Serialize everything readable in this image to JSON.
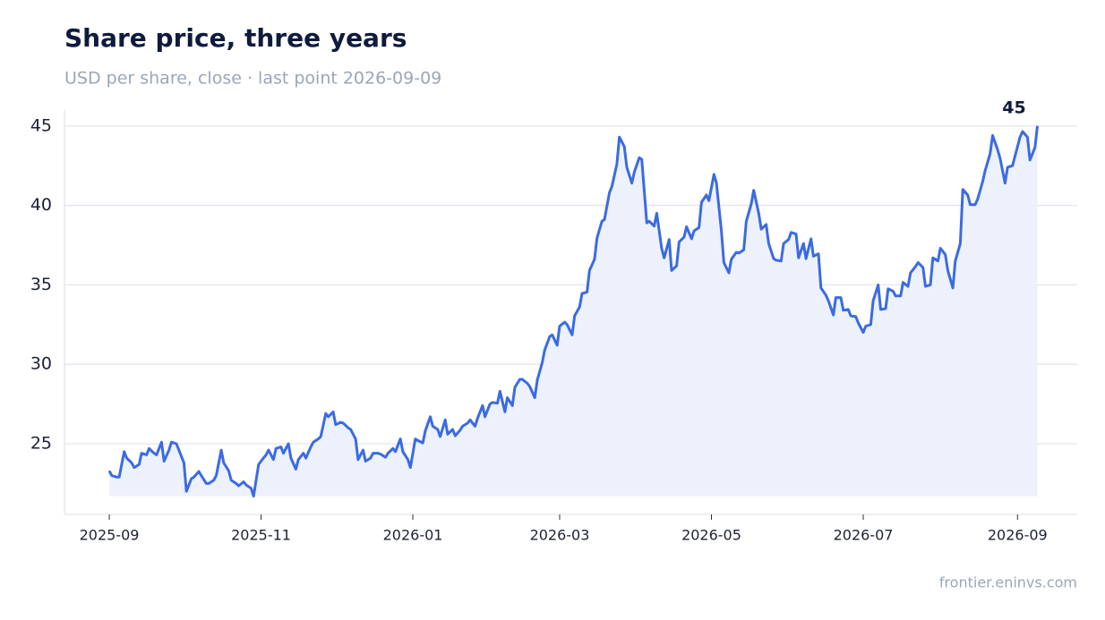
{
  "chart_data": {
    "type": "line",
    "title": "Share price, three years",
    "subtitle": "USD per share, close · last point 2026-09-09",
    "source": "frontier.eninvs.com",
    "x": [
      "2025-09-01",
      "2025-09-02",
      "2025-09-04",
      "2025-09-05",
      "2025-09-07",
      "2025-09-08",
      "2025-09-10",
      "2025-09-11",
      "2025-09-13",
      "2025-09-14",
      "2025-09-16",
      "2025-09-17",
      "2025-09-19",
      "2025-09-20",
      "2025-09-22",
      "2025-09-23",
      "2025-09-25",
      "2025-09-26",
      "2025-09-28",
      "2025-09-29",
      "2025-10-01",
      "2025-10-02",
      "2025-10-04",
      "2025-10-05",
      "2025-10-07",
      "2025-10-08",
      "2025-10-10",
      "2025-10-11",
      "2025-10-13",
      "2025-10-14",
      "2025-10-16",
      "2025-10-17",
      "2025-10-19",
      "2025-10-20",
      "2025-10-22",
      "2025-10-23",
      "2025-10-25",
      "2025-10-26",
      "2025-10-28",
      "2025-10-29",
      "2025-10-31",
      "2025-11-01",
      "2025-11-03",
      "2025-11-04",
      "2025-11-06",
      "2025-11-07",
      "2025-11-09",
      "2025-11-10",
      "2025-11-12",
      "2025-11-13",
      "2025-11-15",
      "2025-11-16",
      "2025-11-18",
      "2025-11-19",
      "2025-11-21",
      "2025-11-22",
      "2025-11-24",
      "2025-11-25",
      "2025-11-27",
      "2025-11-28",
      "2025-11-30",
      "2025-12-01",
      "2025-12-03",
      "2025-12-04",
      "2025-12-06",
      "2025-12-07",
      "2025-12-09",
      "2025-12-10",
      "2025-12-12",
      "2025-12-13",
      "2025-12-15",
      "2025-12-16",
      "2025-12-18",
      "2025-12-19",
      "2025-12-21",
      "2025-12-22",
      "2025-12-24",
      "2025-12-25",
      "2025-12-27",
      "2025-12-28",
      "2025-12-30",
      "2025-12-31",
      "2026-01-02",
      "2026-01-03",
      "2026-01-05",
      "2026-01-06",
      "2026-01-08",
      "2026-01-09",
      "2026-01-11",
      "2026-01-12",
      "2026-01-14",
      "2026-01-15",
      "2026-01-17",
      "2026-01-18",
      "2026-01-20",
      "2026-01-21",
      "2026-01-23",
      "2026-01-24",
      "2026-01-26",
      "2026-01-27",
      "2026-01-29",
      "2026-01-30",
      "2026-02-01",
      "2026-02-02",
      "2026-02-04",
      "2026-02-05",
      "2026-02-07",
      "2026-02-08",
      "2026-02-10",
      "2026-02-11",
      "2026-02-13",
      "2026-02-14",
      "2026-02-16",
      "2026-02-17",
      "2026-02-19",
      "2026-02-20",
      "2026-02-22",
      "2026-02-23",
      "2026-02-25",
      "2026-02-26",
      "2026-02-28",
      "2026-03-01",
      "2026-03-03",
      "2026-03-04",
      "2026-03-06",
      "2026-03-07",
      "2026-03-09",
      "2026-03-10",
      "2026-03-12",
      "2026-03-13",
      "2026-03-15",
      "2026-03-16",
      "2026-03-18",
      "2026-03-19",
      "2026-03-21",
      "2026-03-22",
      "2026-03-24",
      "2026-03-25",
      "2026-03-27",
      "2026-03-28",
      "2026-03-30",
      "2026-03-31",
      "2026-04-02",
      "2026-04-03",
      "2026-04-05",
      "2026-04-06",
      "2026-04-08",
      "2026-04-09",
      "2026-04-11",
      "2026-04-12",
      "2026-04-14",
      "2026-04-15",
      "2026-04-17",
      "2026-04-18",
      "2026-04-20",
      "2026-04-21",
      "2026-04-23",
      "2026-04-24",
      "2026-04-26",
      "2026-04-27",
      "2026-04-29",
      "2026-04-30",
      "2026-05-02",
      "2026-05-03",
      "2026-05-05",
      "2026-05-06",
      "2026-05-08",
      "2026-05-09",
      "2026-05-11",
      "2026-05-12",
      "2026-05-14",
      "2026-05-15",
      "2026-05-17",
      "2026-05-18",
      "2026-05-20",
      "2026-05-21",
      "2026-05-23",
      "2026-05-24",
      "2026-05-26",
      "2026-05-27",
      "2026-05-29",
      "2026-05-30",
      "2026-06-01",
      "2026-06-02",
      "2026-06-04",
      "2026-06-05",
      "2026-06-07",
      "2026-06-08",
      "2026-06-10",
      "2026-06-11",
      "2026-06-13",
      "2026-06-14",
      "2026-06-16",
      "2026-06-17",
      "2026-06-19",
      "2026-06-20",
      "2026-06-22",
      "2026-06-23",
      "2026-06-25",
      "2026-06-26",
      "2026-06-28",
      "2026-06-29",
      "2026-07-01",
      "2026-07-02",
      "2026-07-04",
      "2026-07-05",
      "2026-07-07",
      "2026-07-08",
      "2026-07-10",
      "2026-07-11",
      "2026-07-13",
      "2026-07-14",
      "2026-07-16",
      "2026-07-17",
      "2026-07-19",
      "2026-07-20",
      "2026-07-22",
      "2026-07-23",
      "2026-07-25",
      "2026-07-26",
      "2026-07-28",
      "2026-07-29",
      "2026-07-31",
      "2026-08-01",
      "2026-08-03",
      "2026-08-04",
      "2026-08-06",
      "2026-08-07",
      "2026-08-09",
      "2026-08-10",
      "2026-08-12",
      "2026-08-13",
      "2026-08-15",
      "2026-08-16",
      "2026-08-18",
      "2026-08-19",
      "2026-08-21",
      "2026-08-22",
      "2026-08-24",
      "2026-08-25",
      "2026-08-27",
      "2026-08-28",
      "2026-08-30",
      "2026-08-31",
      "2026-09-02",
      "2026-09-03",
      "2026-09-05",
      "2026-09-06",
      "2026-09-08",
      "2026-09-09"
    ],
    "series": [
      {
        "name": "Close",
        "color": "#3b6be3",
        "fill": "#edf1fc",
        "values": [
          23.3,
          23.0,
          22.9,
          22.9,
          24.5,
          24.1,
          23.8,
          23.5,
          23.7,
          24.4,
          24.3,
          24.7,
          24.4,
          24.3,
          25.1,
          23.9,
          24.6,
          25.1,
          25.0,
          24.6,
          23.8,
          22.0,
          22.8,
          22.9,
          23.25,
          23.0,
          22.5,
          22.5,
          22.7,
          23.0,
          24.6,
          23.8,
          23.3,
          22.7,
          22.5,
          22.35,
          22.6,
          22.4,
          22.2,
          21.7,
          23.7,
          23.9,
          24.3,
          24.6,
          24.0,
          24.7,
          24.8,
          24.4,
          25.0,
          24.1,
          23.4,
          24.0,
          24.4,
          24.1,
          24.8,
          25.1,
          25.3,
          25.45,
          26.9,
          26.7,
          27.0,
          26.2,
          26.35,
          26.3,
          26.0,
          25.9,
          25.3,
          24.0,
          24.6,
          23.9,
          24.1,
          24.4,
          24.4,
          24.35,
          24.15,
          24.4,
          24.7,
          24.5,
          25.3,
          24.5,
          24.0,
          23.5,
          25.3,
          25.2,
          25.05,
          25.8,
          26.7,
          26.1,
          25.9,
          25.45,
          26.5,
          25.6,
          25.9,
          25.5,
          25.85,
          26.1,
          26.3,
          26.5,
          26.1,
          26.6,
          27.4,
          26.7,
          27.5,
          27.6,
          27.55,
          28.3,
          27.0,
          27.9,
          27.4,
          28.55,
          29.05,
          29.05,
          28.8,
          28.6,
          27.9,
          29.0,
          30.1,
          30.9,
          31.75,
          31.85,
          31.2,
          32.4,
          32.65,
          32.5,
          31.85,
          33.05,
          33.6,
          34.45,
          34.55,
          35.9,
          36.6,
          37.95,
          39.0,
          39.1,
          40.8,
          41.2,
          42.6,
          44.3,
          43.7,
          42.4,
          41.4,
          42.1,
          43.0,
          42.9,
          38.9,
          39.0,
          38.7,
          39.5,
          37.3,
          36.7,
          37.85,
          35.9,
          36.2,
          37.7,
          38.0,
          38.65,
          37.9,
          38.4,
          38.6,
          40.2,
          40.65,
          40.3,
          41.95,
          41.4,
          38.4,
          36.4,
          35.75,
          36.6,
          37.05,
          37.0,
          37.2,
          39.0,
          40.1,
          40.95,
          39.5,
          38.5,
          38.8,
          37.6,
          36.65,
          36.55,
          36.5,
          37.6,
          37.85,
          38.3,
          38.2,
          36.7,
          37.6,
          36.65,
          37.9,
          36.8,
          36.95,
          34.8,
          34.35,
          34.0,
          33.1,
          34.2,
          34.2,
          33.4,
          33.45,
          33.05,
          33.0,
          32.6,
          32.0,
          32.4,
          32.5,
          34.0,
          35.0,
          33.45,
          33.5,
          34.75,
          34.6,
          34.3,
          34.3,
          35.15,
          34.9,
          35.75,
          36.15,
          36.4,
          36.1,
          34.9,
          35.0,
          36.7,
          36.5,
          37.3,
          36.9,
          35.9,
          34.8,
          36.5,
          37.6,
          41.0,
          40.65,
          40.05,
          40.05,
          40.4,
          41.5,
          42.2,
          43.25,
          44.4,
          43.5,
          42.95,
          41.4,
          42.4,
          42.5,
          43.1,
          44.3,
          44.65,
          44.3,
          42.85,
          43.65,
          45
        ]
      }
    ],
    "last_value_label": true,
    "xlim": [
      "2025-08-14",
      "2026-09-25"
    ],
    "xticks": [
      {
        "value": "2025-09-01",
        "label": "2025-09"
      },
      {
        "value": "2025-11-01",
        "label": "2025-11"
      },
      {
        "value": "2026-01-01",
        "label": "2026-01"
      },
      {
        "value": "2026-03-01",
        "label": "2026-03"
      },
      {
        "value": "2026-05-01",
        "label": "2026-05"
      },
      {
        "value": "2026-07-01",
        "label": "2026-07"
      },
      {
        "value": "2026-09-01",
        "label": "2026-09"
      }
    ],
    "ylim": [
      20.55,
      46.0
    ],
    "yticks": [
      25,
      30,
      35,
      40,
      45
    ],
    "grid": true
  }
}
